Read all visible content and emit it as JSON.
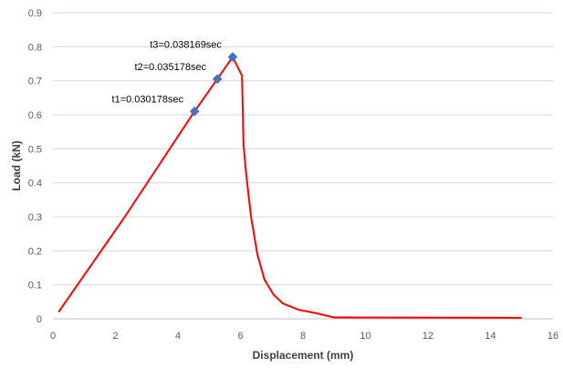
{
  "chart_data": {
    "type": "line",
    "title": "",
    "xlabel": "Displacement (mm)",
    "ylabel": "Load (kN)",
    "xlim": [
      0,
      16
    ],
    "ylim": [
      0,
      0.9
    ],
    "xticks": [
      0,
      2,
      4,
      6,
      8,
      10,
      12,
      14,
      16
    ],
    "yticks": [
      0,
      0.1,
      0.2,
      0.3,
      0.4,
      0.5,
      0.6,
      0.7,
      0.8,
      0.9
    ],
    "grid": "horizontal",
    "series": [
      {
        "color": "#ff0000",
        "x": [
          0.18,
          2.3,
          4.53,
          5.26,
          5.75,
          6.05,
          6.1,
          6.19,
          6.34,
          6.54,
          6.77,
          7.07,
          7.36,
          7.85,
          8.44,
          9.0,
          15.0
        ],
        "y": [
          0.02,
          0.3,
          0.61,
          0.705,
          0.77,
          0.715,
          0.51,
          0.42,
          0.3,
          0.19,
          0.115,
          0.07,
          0.045,
          0.027,
          0.016,
          0.004,
          0.003
        ]
      }
    ],
    "markers": {
      "color": "#4472c4",
      "points": [
        {
          "x": 4.53,
          "y": 0.61,
          "label": "t1=0.030178sec"
        },
        {
          "x": 5.26,
          "y": 0.705,
          "label": "t2=0.035178sec"
        },
        {
          "x": 5.75,
          "y": 0.77,
          "label": "t3=0.038169sec"
        }
      ]
    }
  }
}
